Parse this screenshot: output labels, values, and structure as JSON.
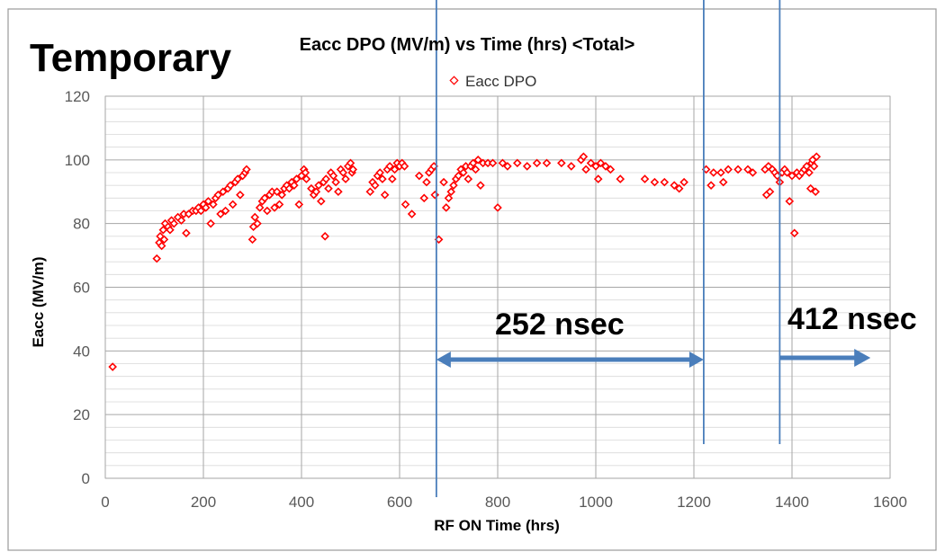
{
  "slide": {
    "label": "Temporary",
    "annotations": [
      {
        "text": "252 nsec"
      },
      {
        "text": "412 nsec"
      }
    ],
    "marker_lines_hrs": [
      675,
      1220,
      1375
    ],
    "arrows_hrs": [
      [
        675,
        1220
      ],
      [
        1375,
        1560
      ]
    ],
    "line_color": "#4A7EBB"
  },
  "chart_data": {
    "type": "scatter",
    "title": "Eacc DPO (MV/m) vs Time (hrs) <Total>",
    "xlabel": "RF ON Time (hrs)",
    "ylabel": "Eacc (MV/m)",
    "xlim": [
      0,
      1600
    ],
    "ylim": [
      0,
      120
    ],
    "x_ticks": [
      0,
      200,
      400,
      600,
      800,
      1000,
      1200,
      1400,
      1600
    ],
    "y_ticks": [
      0,
      20,
      40,
      60,
      80,
      100,
      120
    ],
    "grid": true,
    "legend": "top",
    "marker_color": "#FF0000",
    "series": [
      {
        "name": "Eacc DPO",
        "points": [
          [
            15,
            35
          ],
          [
            105,
            69
          ],
          [
            110,
            74
          ],
          [
            112,
            76
          ],
          [
            115,
            73
          ],
          [
            118,
            78
          ],
          [
            120,
            75
          ],
          [
            122,
            80
          ],
          [
            128,
            79
          ],
          [
            132,
            78
          ],
          [
            135,
            81
          ],
          [
            140,
            80
          ],
          [
            148,
            82
          ],
          [
            155,
            81
          ],
          [
            160,
            83
          ],
          [
            165,
            77
          ],
          [
            170,
            83
          ],
          [
            178,
            84
          ],
          [
            185,
            84
          ],
          [
            190,
            85
          ],
          [
            195,
            84
          ],
          [
            200,
            86
          ],
          [
            205,
            85
          ],
          [
            210,
            87
          ],
          [
            215,
            80
          ],
          [
            220,
            86
          ],
          [
            225,
            88
          ],
          [
            230,
            89
          ],
          [
            235,
            83
          ],
          [
            240,
            90
          ],
          [
            245,
            84
          ],
          [
            250,
            91
          ],
          [
            255,
            92
          ],
          [
            260,
            86
          ],
          [
            265,
            93
          ],
          [
            270,
            94
          ],
          [
            275,
            89
          ],
          [
            280,
            95
          ],
          [
            285,
            96
          ],
          [
            288,
            97
          ],
          [
            300,
            75
          ],
          [
            302,
            79
          ],
          [
            305,
            82
          ],
          [
            310,
            80
          ],
          [
            315,
            85
          ],
          [
            320,
            87
          ],
          [
            325,
            88
          ],
          [
            330,
            84
          ],
          [
            335,
            89
          ],
          [
            340,
            90
          ],
          [
            345,
            85
          ],
          [
            350,
            90
          ],
          [
            355,
            86
          ],
          [
            360,
            89
          ],
          [
            365,
            91
          ],
          [
            370,
            92
          ],
          [
            375,
            91
          ],
          [
            380,
            93
          ],
          [
            385,
            92
          ],
          [
            390,
            94
          ],
          [
            395,
            86
          ],
          [
            400,
            95
          ],
          [
            405,
            97
          ],
          [
            408,
            96
          ],
          [
            410,
            94
          ],
          [
            420,
            91
          ],
          [
            425,
            89
          ],
          [
            430,
            90
          ],
          [
            435,
            92
          ],
          [
            440,
            87
          ],
          [
            445,
            93
          ],
          [
            448,
            76
          ],
          [
            450,
            94
          ],
          [
            455,
            91
          ],
          [
            460,
            96
          ],
          [
            465,
            95
          ],
          [
            470,
            93
          ],
          [
            475,
            90
          ],
          [
            480,
            97
          ],
          [
            485,
            96
          ],
          [
            490,
            94
          ],
          [
            495,
            98
          ],
          [
            500,
            99
          ],
          [
            503,
            96
          ],
          [
            505,
            97
          ],
          [
            540,
            90
          ],
          [
            545,
            93
          ],
          [
            550,
            92
          ],
          [
            555,
            95
          ],
          [
            560,
            96
          ],
          [
            565,
            94
          ],
          [
            570,
            89
          ],
          [
            575,
            97
          ],
          [
            580,
            98
          ],
          [
            585,
            94
          ],
          [
            590,
            97
          ],
          [
            595,
            99
          ],
          [
            600,
            98
          ],
          [
            605,
            99
          ],
          [
            610,
            98
          ],
          [
            612,
            86
          ],
          [
            625,
            83
          ],
          [
            640,
            95
          ],
          [
            650,
            88
          ],
          [
            655,
            93
          ],
          [
            660,
            96
          ],
          [
            665,
            97
          ],
          [
            670,
            98
          ],
          [
            672,
            89
          ],
          [
            680,
            75
          ],
          [
            690,
            93
          ],
          [
            695,
            85
          ],
          [
            700,
            88
          ],
          [
            705,
            90
          ],
          [
            710,
            92
          ],
          [
            715,
            94
          ],
          [
            720,
            95
          ],
          [
            725,
            97
          ],
          [
            730,
            96
          ],
          [
            735,
            98
          ],
          [
            740,
            94
          ],
          [
            745,
            98
          ],
          [
            750,
            99
          ],
          [
            755,
            97
          ],
          [
            760,
            100
          ],
          [
            765,
            92
          ],
          [
            770,
            99
          ],
          [
            780,
            99
          ],
          [
            790,
            99
          ],
          [
            800,
            85
          ],
          [
            810,
            99
          ],
          [
            820,
            98
          ],
          [
            840,
            99
          ],
          [
            860,
            98
          ],
          [
            880,
            99
          ],
          [
            900,
            99
          ],
          [
            930,
            99
          ],
          [
            950,
            98
          ],
          [
            970,
            100
          ],
          [
            975,
            101
          ],
          [
            980,
            97
          ],
          [
            990,
            99
          ],
          [
            1000,
            98
          ],
          [
            1005,
            94
          ],
          [
            1010,
            99
          ],
          [
            1020,
            98
          ],
          [
            1030,
            97
          ],
          [
            1050,
            94
          ],
          [
            1100,
            94
          ],
          [
            1120,
            93
          ],
          [
            1140,
            93
          ],
          [
            1160,
            92
          ],
          [
            1170,
            91
          ],
          [
            1180,
            93
          ],
          [
            1225,
            97
          ],
          [
            1235,
            92
          ],
          [
            1240,
            96
          ],
          [
            1255,
            96
          ],
          [
            1260,
            93
          ],
          [
            1270,
            97
          ],
          [
            1290,
            97
          ],
          [
            1310,
            97
          ],
          [
            1320,
            96
          ],
          [
            1345,
            97
          ],
          [
            1348,
            89
          ],
          [
            1352,
            98
          ],
          [
            1355,
            90
          ],
          [
            1360,
            97
          ],
          [
            1365,
            96
          ],
          [
            1370,
            95
          ],
          [
            1375,
            93
          ],
          [
            1380,
            96
          ],
          [
            1385,
            97
          ],
          [
            1390,
            96
          ],
          [
            1395,
            87
          ],
          [
            1400,
            95
          ],
          [
            1405,
            77
          ],
          [
            1410,
            96
          ],
          [
            1415,
            95
          ],
          [
            1420,
            96
          ],
          [
            1425,
            97
          ],
          [
            1430,
            98
          ],
          [
            1435,
            96
          ],
          [
            1438,
            91
          ],
          [
            1440,
            99
          ],
          [
            1442,
            100
          ],
          [
            1445,
            98
          ],
          [
            1448,
            90
          ],
          [
            1450,
            101
          ]
        ]
      }
    ]
  }
}
